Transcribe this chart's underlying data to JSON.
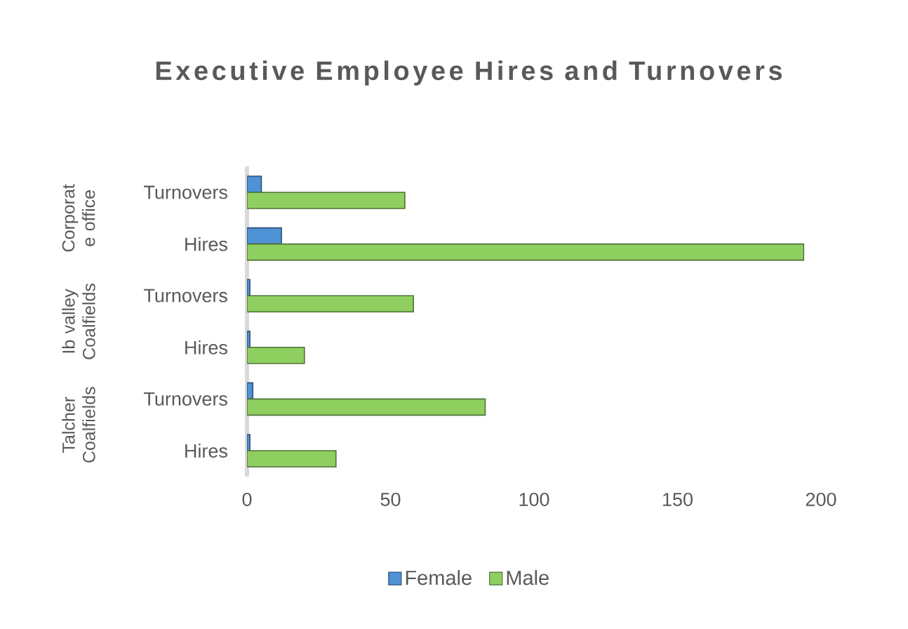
{
  "chart_data": {
    "type": "bar",
    "orientation": "horizontal",
    "title": "Executive Employee Hires and Turnovers",
    "categories": [
      "Turnovers",
      "Hires",
      "Turnovers",
      "Hires",
      "Turnovers",
      "Hires"
    ],
    "series": [
      {
        "name": "Female",
        "color": "#4f92d6",
        "values": [
          5,
          12,
          1,
          1,
          2,
          1
        ]
      },
      {
        "name": "Male",
        "color": "#8fcf60",
        "values": [
          55,
          194,
          58,
          20,
          83,
          31
        ]
      }
    ],
    "xlim": [
      0,
      200
    ],
    "xticks": [
      0,
      50,
      100,
      150,
      200
    ],
    "annotations": [
      "Corporat e office",
      "Ib valley Coalfields",
      "Talcher Coalfields"
    ],
    "legend": "bottom"
  }
}
